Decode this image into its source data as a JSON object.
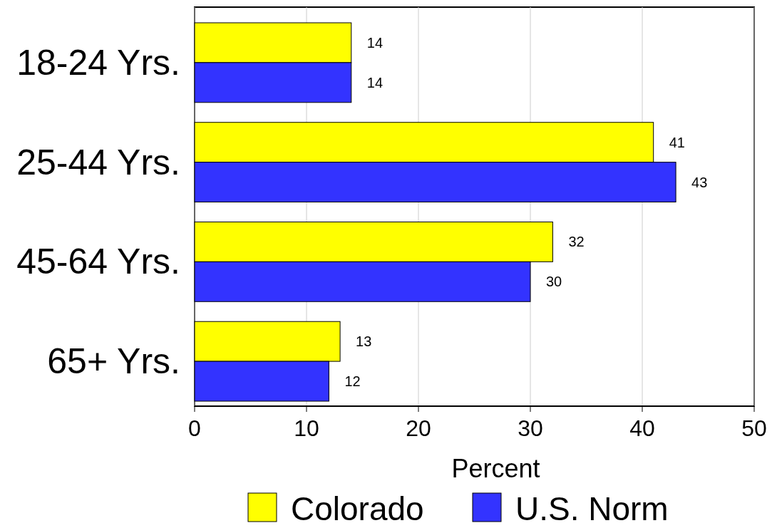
{
  "chart_data": {
    "type": "bar",
    "orientation": "horizontal",
    "categories": [
      "18-24 Yrs.",
      "25-44 Yrs.",
      "45-64 Yrs.",
      "65+ Yrs."
    ],
    "series": [
      {
        "name": "Colorado",
        "color": "#ffff00",
        "values": [
          14,
          41,
          32,
          13
        ]
      },
      {
        "name": "U.S. Norm",
        "color": "#3333ff",
        "values": [
          14,
          43,
          30,
          12
        ]
      }
    ],
    "xlim": [
      0,
      50
    ],
    "xticks": [
      0,
      10,
      20,
      30,
      40,
      50
    ],
    "xlabel": "Percent",
    "grid": "x",
    "legend": "bottom",
    "data_labels": true
  }
}
